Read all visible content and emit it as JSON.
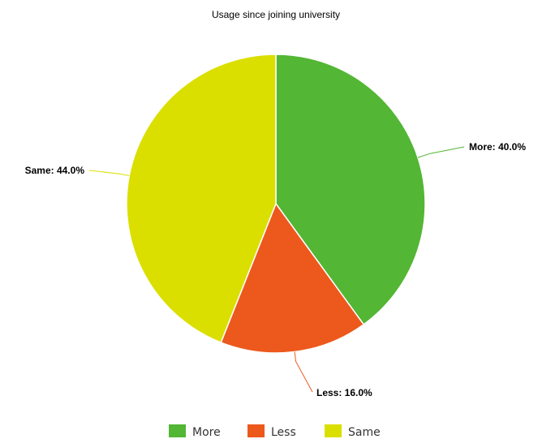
{
  "chart_data": {
    "type": "pie",
    "title": "Usage since joining university",
    "slices": [
      {
        "name": "More",
        "value": 40.0,
        "label": "More: 40.0%",
        "color": "#53b634"
      },
      {
        "name": "Less",
        "value": 16.0,
        "label": "Less: 16.0%",
        "color": "#ed581d"
      },
      {
        "name": "Same",
        "value": 44.0,
        "label": "Same: 44.0%",
        "color": "#dbdf00"
      }
    ],
    "legend": {
      "placement": "bottom",
      "entries": [
        "More",
        "Less",
        "Same"
      ]
    }
  }
}
